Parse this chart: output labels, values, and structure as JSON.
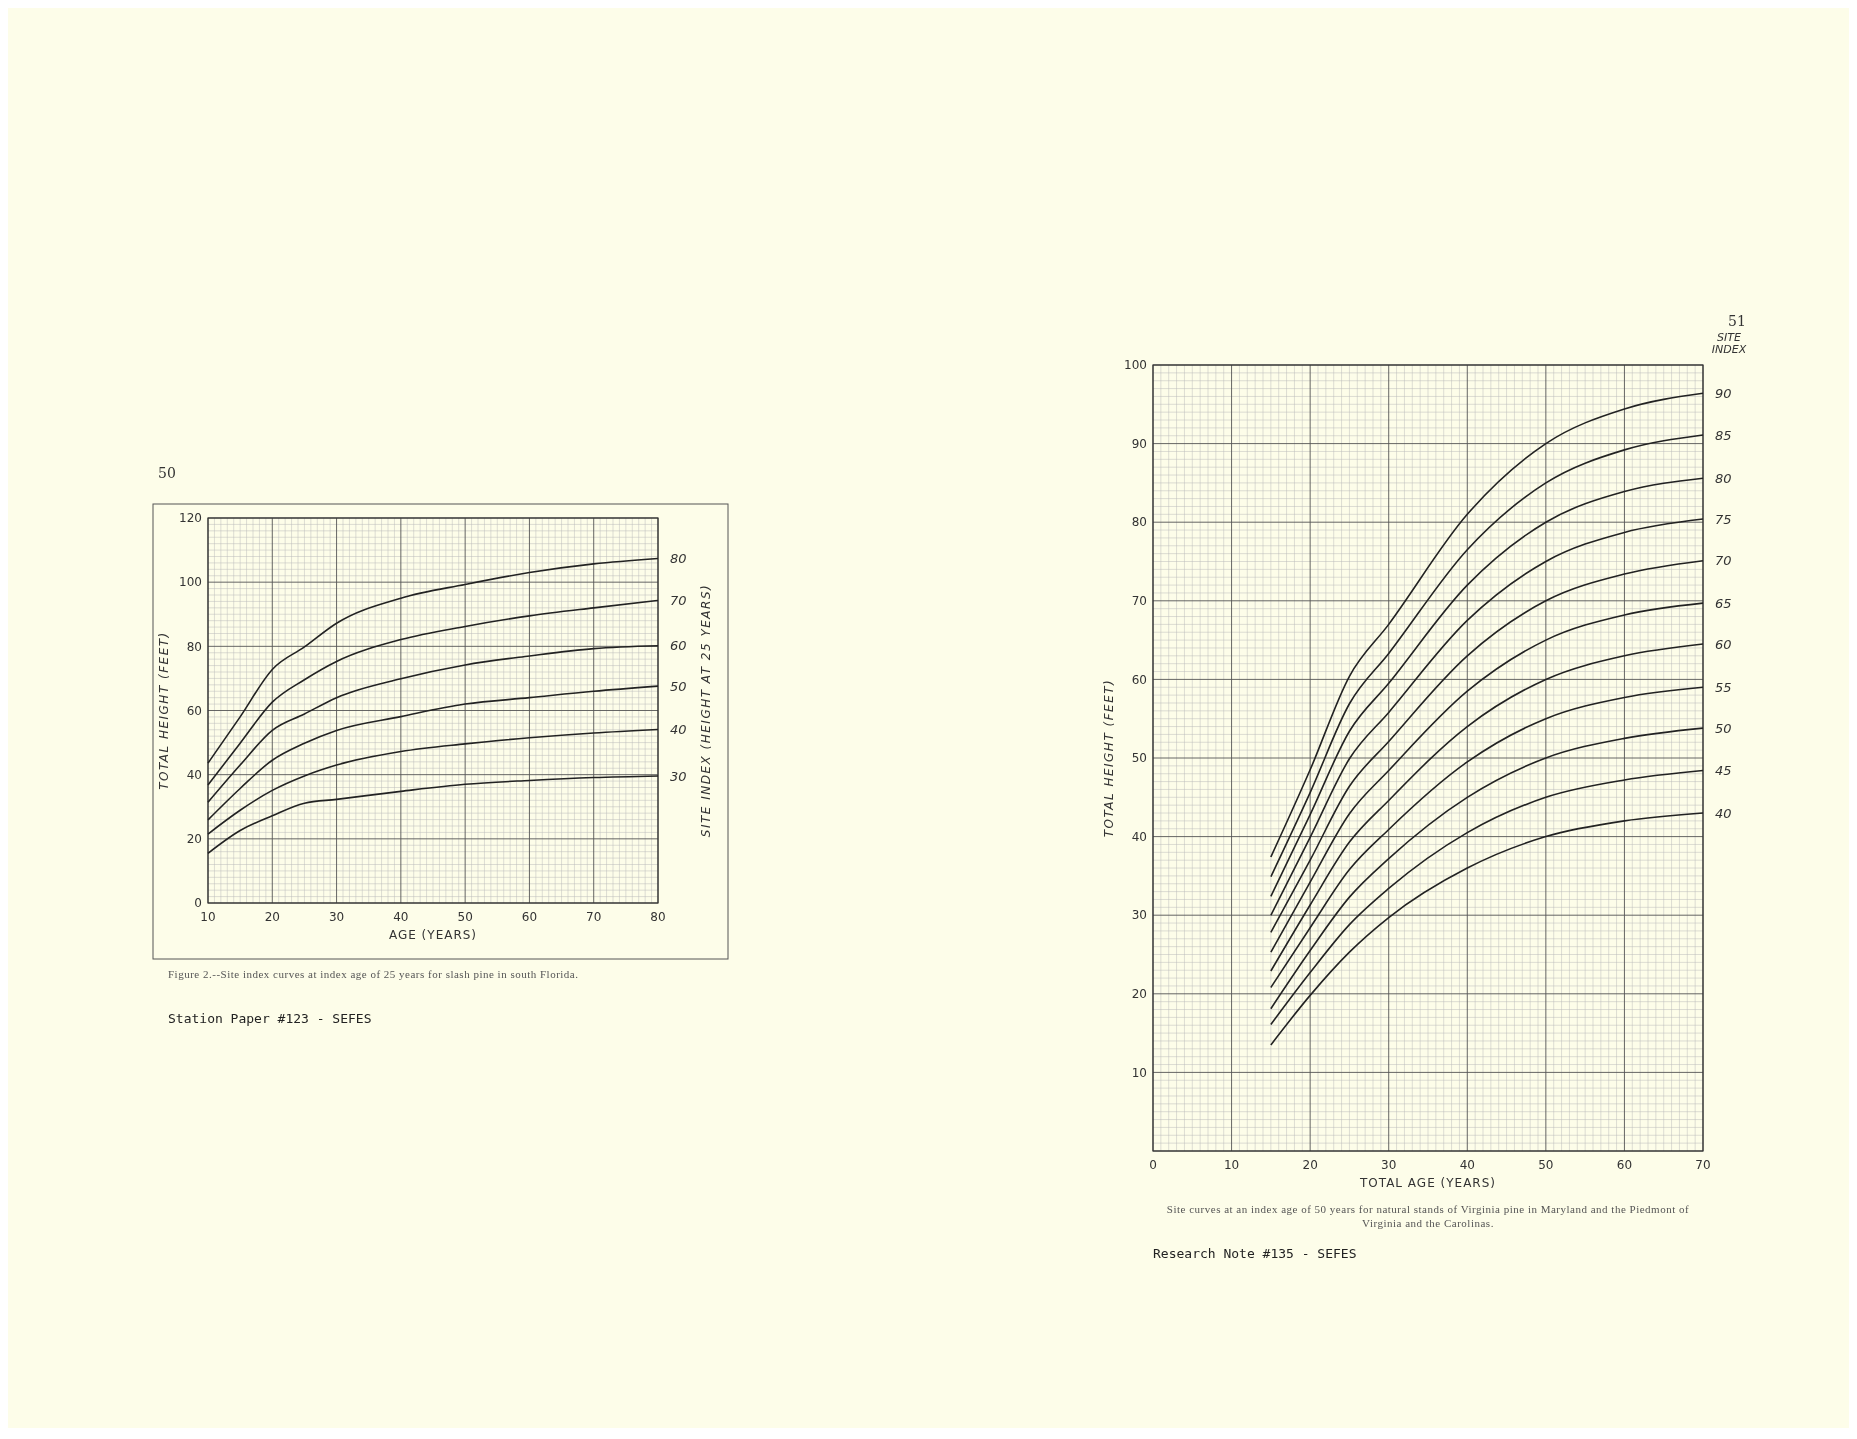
{
  "chart_data": [
    {
      "type": "line",
      "xlabel": "AGE (YEARS)",
      "ylabel": "TOTAL HEIGHT (FEET)",
      "y2label": "SITE INDEX (HEIGHT AT 25 YEARS)",
      "x": [
        10,
        15,
        20,
        25,
        30,
        40,
        50,
        60,
        70,
        80
      ],
      "xlim": [
        10,
        80
      ],
      "ylim": [
        0,
        120
      ],
      "xticks": [
        10,
        20,
        30,
        40,
        50,
        60,
        70,
        80
      ],
      "yticks": [
        0,
        20,
        40,
        60,
        80,
        100,
        120
      ],
      "grid": true,
      "series": [
        {
          "name": "80",
          "color": "#222222",
          "values": [
            43.6,
            58,
            72.8,
            79.8,
            87.2,
            95,
            99.3,
            103,
            105.7,
            107.4
          ]
        },
        {
          "name": "70",
          "color": "#222222",
          "values": [
            36.8,
            49.8,
            62.6,
            69.6,
            75.3,
            82.1,
            86.2,
            89.5,
            92,
            94.3
          ]
        },
        {
          "name": "60",
          "color": "#222222",
          "values": [
            31.4,
            43,
            53.8,
            58.9,
            64,
            69.9,
            74.2,
            77,
            79.3,
            80.2
          ]
        },
        {
          "name": "50",
          "color": "#222222",
          "values": [
            25.9,
            35.7,
            44.5,
            49.8,
            53.8,
            58.1,
            62,
            64,
            66,
            67.6
          ]
        },
        {
          "name": "40",
          "color": "#222222",
          "values": [
            21.5,
            28.9,
            35.1,
            39.6,
            43,
            47.2,
            49.6,
            51.5,
            53,
            54.1
          ]
        },
        {
          "name": "30",
          "color": "#222222",
          "values": [
            15.5,
            22.6,
            27.2,
            31.1,
            32.3,
            34.8,
            37,
            38.2,
            39.1,
            39.6
          ]
        }
      ],
      "annotations": [
        "50",
        "Figure 2.--Site index curves at index age of 25 years for slash pine in south Florida.",
        "Station Paper #123 - SEFES"
      ]
    },
    {
      "type": "line",
      "xlabel": "TOTAL AGE (YEARS)",
      "ylabel": "TOTAL HEIGHT (FEET)",
      "legend_title": "SITE INDEX",
      "x": [
        15,
        20,
        25,
        30,
        40,
        50,
        60,
        70
      ],
      "xlim": [
        0,
        70
      ],
      "ylim": [
        0,
        100
      ],
      "xticks": [
        0,
        10,
        20,
        30,
        40,
        50,
        60,
        70
      ],
      "yticks": [
        {
          "value": 0,
          "label": null
        },
        10,
        20,
        30,
        40,
        50,
        60,
        70,
        80,
        90,
        100
      ],
      "grid": true,
      "series": [
        {
          "name": "90",
          "color": "#222222",
          "values": [
            37.4,
            48.5,
            60.4,
            67,
            81,
            90,
            94.4,
            96.4
          ]
        },
        {
          "name": "85",
          "color": "#222222",
          "values": [
            34.9,
            45.6,
            56.9,
            63.3,
            76.5,
            85,
            89.2,
            91.1
          ]
        },
        {
          "name": "80",
          "color": "#222222",
          "values": [
            32.4,
            42.8,
            53.4,
            59.5,
            72,
            80,
            83.9,
            85.6
          ]
        },
        {
          "name": "75",
          "color": "#222222",
          "values": [
            30,
            39.9,
            49.9,
            55.8,
            67.5,
            75,
            78.7,
            80.4
          ]
        },
        {
          "name": "70",
          "color": "#222222",
          "values": [
            27.8,
            37,
            46.4,
            52.1,
            63,
            70,
            73.4,
            75.1
          ]
        },
        {
          "name": "65",
          "color": "#222222",
          "values": [
            25.3,
            34.2,
            42.9,
            48.4,
            58.5,
            65,
            68.2,
            69.7
          ]
        },
        {
          "name": "60",
          "color": "#222222",
          "values": [
            22.9,
            31.3,
            39.3,
            44.6,
            54,
            60,
            63,
            64.5
          ]
        },
        {
          "name": "55",
          "color": "#222222",
          "values": [
            20.8,
            28.4,
            35.8,
            40.9,
            49.5,
            55,
            57.7,
            59
          ]
        },
        {
          "name": "50",
          "color": "#222222",
          "values": [
            18.1,
            25.5,
            32.3,
            37.2,
            45,
            50,
            52.5,
            53.8
          ]
        },
        {
          "name": "45",
          "color": "#222222",
          "values": [
            16.1,
            22.7,
            28.8,
            33.4,
            40.5,
            45,
            47.2,
            48.4
          ]
        },
        {
          "name": "40",
          "color": "#222222",
          "values": [
            13.5,
            19.8,
            25.3,
            29.7,
            36,
            40,
            42,
            43
          ]
        }
      ],
      "annotations": [
        "51",
        "Site curves at an index age of 50 years for natural stands of Virginia pine in Maryland and the Piedmont of Virginia and the Carolinas.",
        "Research Note #135 - SEFES"
      ]
    }
  ]
}
